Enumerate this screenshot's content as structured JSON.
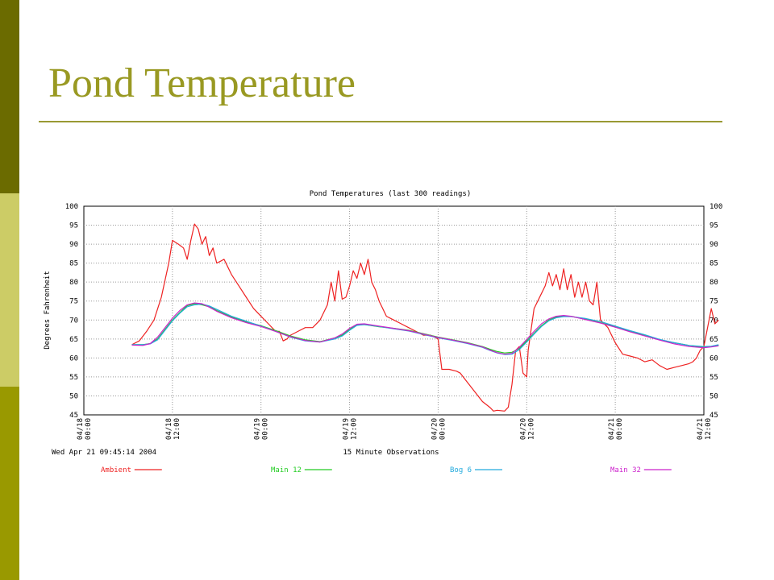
{
  "slide": {
    "title": "Pond Temperature"
  },
  "colors": {
    "sidebar": [
      "#6b6b00",
      "#cccc66",
      "#999900"
    ],
    "title": "#999922",
    "rule": "#999933"
  },
  "chart_data": {
    "type": "line",
    "title": "Pond Temperatures (last 300 readings)",
    "xlabel": "15 Minute Observations",
    "ylabel": "Degrees Fahrenheit",
    "timestamp": "Wed Apr 21 09:45:14 2004",
    "ylim": [
      45,
      100
    ],
    "yticks": [
      45,
      50,
      55,
      60,
      65,
      70,
      75,
      80,
      85,
      90,
      95,
      100
    ],
    "xlim": [
      0,
      84
    ],
    "xticks": [
      {
        "x": 0,
        "date": "04/18",
        "time": "00:00"
      },
      {
        "x": 12,
        "date": "04/18",
        "time": "12:00"
      },
      {
        "x": 24,
        "date": "04/19",
        "time": "00:00"
      },
      {
        "x": 36,
        "date": "04/19",
        "time": "12:00"
      },
      {
        "x": 48,
        "date": "04/20",
        "time": "00:00"
      },
      {
        "x": 60,
        "date": "04/20",
        "time": "12:00"
      },
      {
        "x": 72,
        "date": "04/21",
        "time": "00:00"
      },
      {
        "x": 84,
        "date": "04/21",
        "time": "12:00"
      }
    ],
    "grid": true,
    "legend_position": "bottom",
    "series": [
      {
        "name": "Ambient",
        "color": "#ee2222",
        "points": [
          [
            6.5,
            63.5
          ],
          [
            7.5,
            64.5
          ],
          [
            8.5,
            67
          ],
          [
            9.5,
            70
          ],
          [
            10.5,
            76
          ],
          [
            11.5,
            85
          ],
          [
            12,
            91
          ],
          [
            12.8,
            90
          ],
          [
            13.5,
            89
          ],
          [
            14,
            86
          ],
          [
            14.5,
            91
          ],
          [
            15,
            95.3
          ],
          [
            15.5,
            94
          ],
          [
            16,
            90
          ],
          [
            16.5,
            92
          ],
          [
            17,
            87
          ],
          [
            17.5,
            89
          ],
          [
            18,
            85
          ],
          [
            18.5,
            85.5
          ],
          [
            19,
            86
          ],
          [
            19.5,
            84
          ],
          [
            20,
            82
          ],
          [
            21,
            79
          ],
          [
            22,
            76
          ],
          [
            23,
            73
          ],
          [
            24,
            71
          ],
          [
            25,
            69
          ],
          [
            26,
            67
          ],
          [
            26.5,
            67
          ],
          [
            27,
            64.5
          ],
          [
            27.5,
            65
          ],
          [
            28,
            66
          ],
          [
            29,
            67
          ],
          [
            30,
            68
          ],
          [
            31,
            68
          ],
          [
            32,
            70
          ],
          [
            33,
            74
          ],
          [
            33.5,
            80
          ],
          [
            34,
            75
          ],
          [
            34.5,
            83
          ],
          [
            35,
            75.5
          ],
          [
            35.5,
            76
          ],
          [
            36,
            79
          ],
          [
            36.5,
            83
          ],
          [
            37,
            81
          ],
          [
            37.5,
            85
          ],
          [
            38,
            82
          ],
          [
            38.5,
            86
          ],
          [
            39,
            80
          ],
          [
            39.5,
            78
          ],
          [
            40,
            75
          ],
          [
            41,
            71
          ],
          [
            42,
            70
          ],
          [
            43,
            69
          ],
          [
            44,
            68
          ],
          [
            45,
            67
          ],
          [
            46,
            66
          ],
          [
            47,
            66
          ],
          [
            48,
            65
          ],
          [
            48.5,
            57
          ],
          [
            49.5,
            57
          ],
          [
            50.5,
            56.5
          ],
          [
            51,
            56
          ],
          [
            52,
            53.5
          ],
          [
            53,
            51
          ],
          [
            54,
            48.5
          ],
          [
            55,
            47
          ],
          [
            55.5,
            46
          ],
          [
            56,
            46.2
          ],
          [
            57,
            46
          ],
          [
            57.5,
            47
          ],
          [
            58,
            53
          ],
          [
            58.5,
            62
          ],
          [
            59,
            63
          ],
          [
            59.5,
            56
          ],
          [
            60,
            55
          ],
          [
            60.2,
            62
          ],
          [
            61,
            73
          ],
          [
            62,
            77
          ],
          [
            62.5,
            79
          ],
          [
            63,
            82.5
          ],
          [
            63.5,
            79
          ],
          [
            64,
            82
          ],
          [
            64.5,
            78
          ],
          [
            65,
            83.5
          ],
          [
            65.5,
            78
          ],
          [
            66,
            82
          ],
          [
            66.5,
            76
          ],
          [
            67,
            80
          ],
          [
            67.5,
            76
          ],
          [
            68,
            80
          ],
          [
            68.5,
            75
          ],
          [
            69,
            74
          ],
          [
            69.5,
            80
          ],
          [
            70,
            70
          ],
          [
            71,
            68
          ],
          [
            72,
            64
          ],
          [
            73,
            61
          ],
          [
            74,
            60.5
          ],
          [
            75,
            60
          ],
          [
            76,
            59
          ],
          [
            77,
            59.5
          ],
          [
            78,
            58
          ],
          [
            78.5,
            57.5
          ],
          [
            79,
            57
          ],
          [
            80,
            57.5
          ],
          [
            81,
            58
          ],
          [
            82,
            58.5
          ],
          [
            82.5,
            59
          ],
          [
            83,
            60
          ],
          [
            83.5,
            62
          ],
          [
            84,
            63
          ],
          [
            84.5,
            68
          ],
          [
            85,
            73
          ],
          [
            85.5,
            69
          ],
          [
            86,
            70
          ]
        ]
      },
      {
        "name": "Main 12",
        "color": "#22cc22",
        "points": [
          [
            6.5,
            63.5
          ],
          [
            8,
            63.5
          ],
          [
            9,
            63.8
          ],
          [
            10,
            65
          ],
          [
            11,
            67.5
          ],
          [
            12,
            70
          ],
          [
            13,
            72
          ],
          [
            14,
            73.8
          ],
          [
            15,
            74.3
          ],
          [
            16,
            74
          ],
          [
            17,
            73.5
          ],
          [
            18,
            72.5
          ],
          [
            20,
            70.8
          ],
          [
            22,
            69.5
          ],
          [
            24,
            68.5
          ],
          [
            26,
            67.2
          ],
          [
            28,
            65.8
          ],
          [
            30,
            64.8
          ],
          [
            32,
            64.3
          ],
          [
            34,
            65.3
          ],
          [
            35,
            66
          ],
          [
            36,
            67.5
          ],
          [
            37,
            68.7
          ],
          [
            38,
            68.8
          ],
          [
            40,
            68.2
          ],
          [
            42,
            67.8
          ],
          [
            44,
            67.3
          ],
          [
            46,
            66.4
          ],
          [
            48,
            65.5
          ],
          [
            50,
            64.8
          ],
          [
            52,
            64
          ],
          [
            54,
            63
          ],
          [
            55,
            62.3
          ],
          [
            56,
            61.7
          ],
          [
            57,
            61.3
          ],
          [
            58,
            61.5
          ],
          [
            59,
            62.5
          ],
          [
            60,
            64.5
          ],
          [
            61,
            66.5
          ],
          [
            62,
            68.5
          ],
          [
            63,
            70
          ],
          [
            64,
            70.8
          ],
          [
            65,
            71
          ],
          [
            66,
            71
          ],
          [
            68,
            70.2
          ],
          [
            70,
            69.3
          ],
          [
            72,
            68.2
          ],
          [
            74,
            67
          ],
          [
            76,
            66
          ],
          [
            78,
            64.8
          ],
          [
            80,
            64
          ],
          [
            82,
            63.3
          ],
          [
            84,
            62.8
          ],
          [
            85,
            63
          ],
          [
            86,
            63.3
          ]
        ]
      },
      {
        "name": "Bog 6",
        "color": "#22aadd",
        "points": [
          [
            6.5,
            63.5
          ],
          [
            8,
            63.5
          ],
          [
            9,
            63.7
          ],
          [
            10,
            64.8
          ],
          [
            11,
            67.3
          ],
          [
            12,
            69.8
          ],
          [
            13,
            71.8
          ],
          [
            14,
            73.5
          ],
          [
            15,
            74
          ],
          [
            16,
            74.2
          ],
          [
            17,
            73.7
          ],
          [
            18,
            72.8
          ],
          [
            20,
            71
          ],
          [
            22,
            69.7
          ],
          [
            24,
            68.4
          ],
          [
            26,
            67
          ],
          [
            28,
            65.5
          ],
          [
            30,
            64.5
          ],
          [
            32,
            64.2
          ],
          [
            34,
            65
          ],
          [
            35,
            65.8
          ],
          [
            36,
            67.3
          ],
          [
            37,
            68.6
          ],
          [
            38,
            68.8
          ],
          [
            40,
            68.3
          ],
          [
            42,
            67.7
          ],
          [
            44,
            67.1
          ],
          [
            46,
            66.2
          ],
          [
            48,
            65.3
          ],
          [
            50,
            64.6
          ],
          [
            52,
            63.8
          ],
          [
            54,
            62.8
          ],
          [
            55,
            62
          ],
          [
            56,
            61.3
          ],
          [
            57,
            60.9
          ],
          [
            58,
            61
          ],
          [
            59,
            62.2
          ],
          [
            60,
            64.2
          ],
          [
            61,
            66.3
          ],
          [
            62,
            68.3
          ],
          [
            63,
            69.8
          ],
          [
            64,
            70.6
          ],
          [
            65,
            70.9
          ],
          [
            66,
            70.9
          ],
          [
            68,
            70.4
          ],
          [
            70,
            69.6
          ],
          [
            72,
            68.4
          ],
          [
            74,
            67.2
          ],
          [
            76,
            66.1
          ],
          [
            78,
            64.9
          ],
          [
            80,
            64
          ],
          [
            82,
            63.3
          ],
          [
            84,
            63
          ],
          [
            85,
            63.1
          ],
          [
            86,
            63.5
          ]
        ]
      },
      {
        "name": "Main 32",
        "color": "#cc22cc",
        "points": [
          [
            6.5,
            63.4
          ],
          [
            8,
            63.3
          ],
          [
            9,
            63.8
          ],
          [
            10,
            65.5
          ],
          [
            11,
            68
          ],
          [
            12,
            70.5
          ],
          [
            13,
            72.5
          ],
          [
            14,
            74
          ],
          [
            15,
            74.5
          ],
          [
            16,
            74.3
          ],
          [
            17,
            73.4
          ],
          [
            18,
            72.3
          ],
          [
            20,
            70.6
          ],
          [
            22,
            69.3
          ],
          [
            24,
            68.3
          ],
          [
            26,
            67
          ],
          [
            28,
            65.6
          ],
          [
            30,
            64.6
          ],
          [
            32,
            64.2
          ],
          [
            34,
            65.3
          ],
          [
            35,
            66.3
          ],
          [
            36,
            67.8
          ],
          [
            37,
            68.9
          ],
          [
            38,
            69
          ],
          [
            40,
            68.4
          ],
          [
            42,
            67.8
          ],
          [
            44,
            67.2
          ],
          [
            46,
            66.3
          ],
          [
            48,
            65.4
          ],
          [
            50,
            64.7
          ],
          [
            52,
            63.9
          ],
          [
            54,
            62.9
          ],
          [
            55,
            62.1
          ],
          [
            56,
            61.4
          ],
          [
            57,
            61
          ],
          [
            58,
            61.2
          ],
          [
            59,
            62.8
          ],
          [
            60,
            64.9
          ],
          [
            61,
            67
          ],
          [
            62,
            69
          ],
          [
            63,
            70.3
          ],
          [
            64,
            71
          ],
          [
            65,
            71.2
          ],
          [
            66,
            71
          ],
          [
            68,
            70.1
          ],
          [
            70,
            69.2
          ],
          [
            72,
            68.1
          ],
          [
            74,
            66.9
          ],
          [
            76,
            65.8
          ],
          [
            78,
            64.7
          ],
          [
            80,
            63.7
          ],
          [
            82,
            63
          ],
          [
            84,
            62.7
          ],
          [
            85,
            62.9
          ],
          [
            86,
            63.2
          ]
        ]
      }
    ]
  }
}
